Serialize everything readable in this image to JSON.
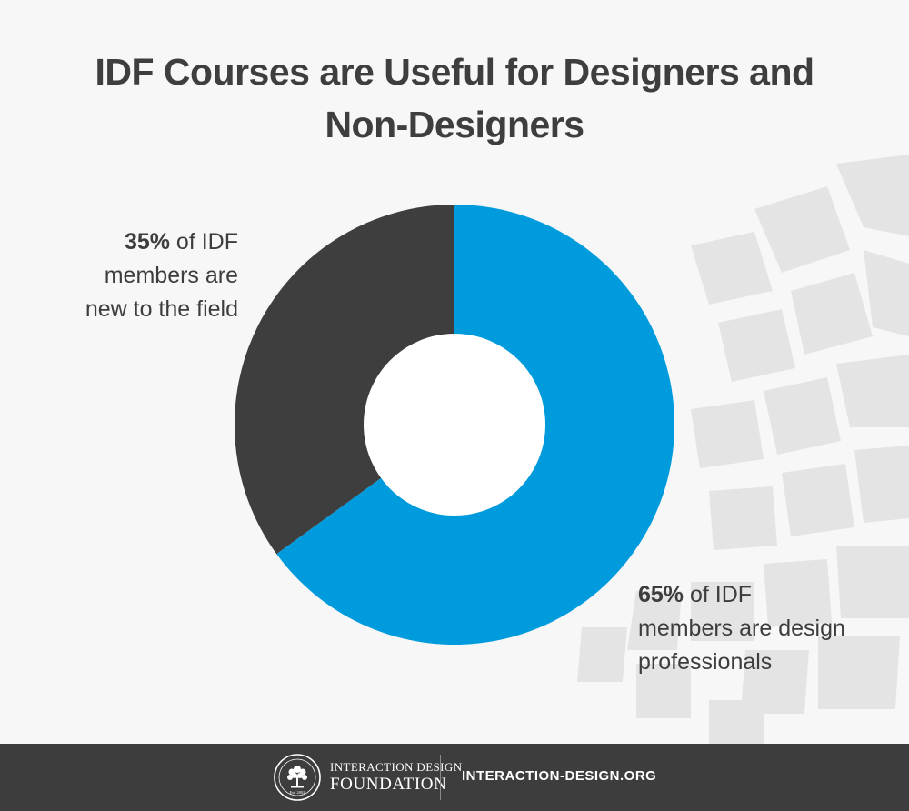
{
  "title_lines": [
    "IDF Courses are Useful for Designers and",
    "Non-Designers"
  ],
  "chart_data": {
    "type": "pie",
    "donut": true,
    "slices": [
      {
        "label": "of IDF members are design professionals",
        "value": 65,
        "color": "#009bdc"
      },
      {
        "label": "of IDF members are new to the field",
        "value": 35,
        "color": "#3e3e3f"
      }
    ]
  },
  "callouts": {
    "left": {
      "percent": "35%",
      "lines": [
        " of IDF",
        "members are",
        "new to the field"
      ]
    },
    "right": {
      "percent": "65%",
      "lines": [
        " of IDF",
        "members are design",
        "professionals"
      ]
    }
  },
  "footer": {
    "brand_line1": "INTERACTION DESIGN",
    "brand_line2": "FOUNDATION",
    "seal_text": "Est. 2002",
    "site": "INTERACTION-DESIGN.ORG",
    "background": "#3d3d3d"
  }
}
